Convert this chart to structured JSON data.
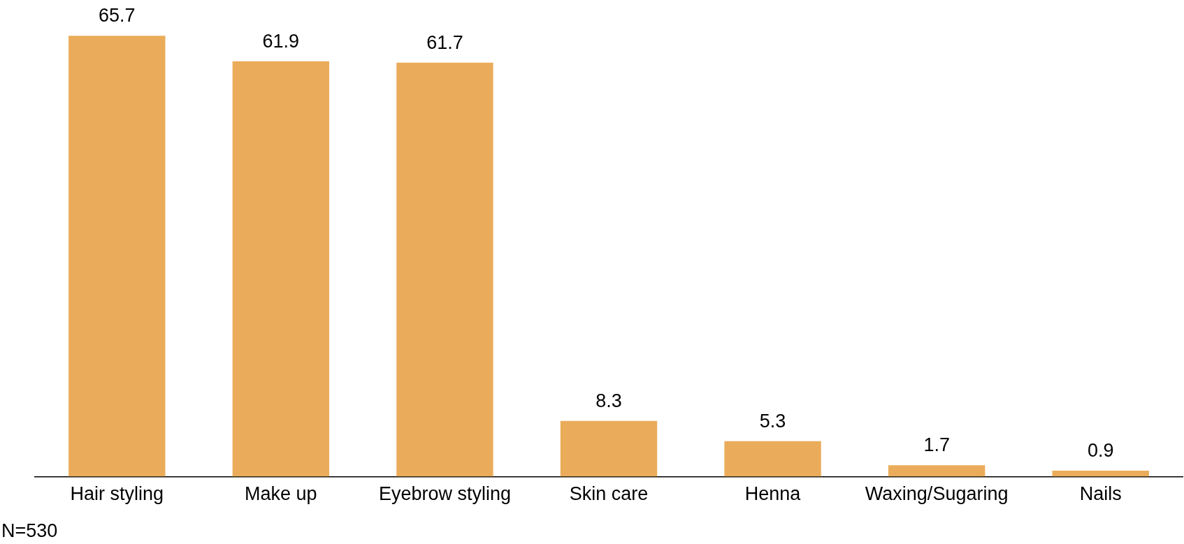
{
  "chart_data": {
    "type": "bar",
    "categories": [
      "Hair styling",
      "Make up",
      "Eyebrow styling",
      "Skin care",
      "Henna",
      "Waxing/Sugaring",
      "Nails"
    ],
    "values": [
      65.7,
      61.9,
      61.7,
      8.3,
      5.3,
      1.7,
      0.9
    ],
    "color": "#eaac5a",
    "data_labels": true,
    "grid": false,
    "legend": false,
    "annotations": [
      "N=530"
    ]
  }
}
